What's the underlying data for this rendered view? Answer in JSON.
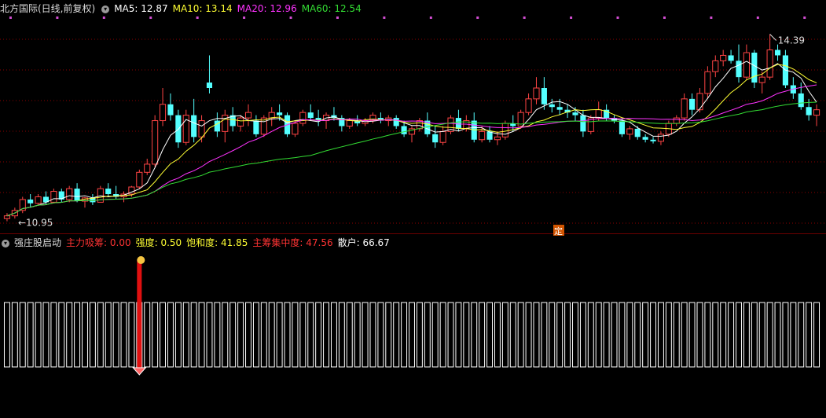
{
  "price_panel": {
    "title": "北方国际(日线,前复权)",
    "ma_labels": [
      {
        "label": "MA5: 12.87",
        "color": "#ffffff"
      },
      {
        "label": "MA10: 13.14",
        "color": "#ffff33"
      },
      {
        "label": "MA20: 12.96",
        "color": "#ff33ff"
      },
      {
        "label": "MA60: 12.54",
        "color": "#33dd33"
      }
    ],
    "high_label": "14.39",
    "low_label": "10.95",
    "marker_label": "定"
  },
  "indicator_panel": {
    "title": "强庄股启动",
    "labels": [
      {
        "label": "主力吸筹: 0.00",
        "color": "#ff3333"
      },
      {
        "label": "强度: 0.50",
        "color": "#ffff33"
      },
      {
        "label": "饱和度: 41.85",
        "color": "#ffff33"
      },
      {
        "label": "主筹集中度: 47.56",
        "color": "#ff3333"
      },
      {
        "label": "散户: 66.67",
        "color": "#ffffff"
      }
    ]
  },
  "colors": {
    "up": "#ff4444",
    "down": "#54ffff",
    "ma5": "#ffffff",
    "ma10": "#ffff33",
    "ma20": "#ff33ff",
    "ma60": "#33dd33",
    "grid": "#8b0000"
  },
  "chart_data": {
    "type": "candlestick",
    "y_range": [
      10.8,
      14.7
    ],
    "candles": [
      {
        "o": 11.0,
        "h": 11.1,
        "l": 10.95,
        "c": 11.05
      },
      {
        "o": 11.05,
        "h": 11.2,
        "l": 11.0,
        "c": 11.15
      },
      {
        "o": 11.15,
        "h": 11.4,
        "l": 11.1,
        "c": 11.35
      },
      {
        "o": 11.35,
        "h": 11.45,
        "l": 11.2,
        "c": 11.28
      },
      {
        "o": 11.28,
        "h": 11.45,
        "l": 11.25,
        "c": 11.4
      },
      {
        "o": 11.4,
        "h": 11.5,
        "l": 11.25,
        "c": 11.3
      },
      {
        "o": 11.3,
        "h": 11.55,
        "l": 11.3,
        "c": 11.5
      },
      {
        "o": 11.5,
        "h": 11.55,
        "l": 11.3,
        "c": 11.35
      },
      {
        "o": 11.35,
        "h": 11.6,
        "l": 11.3,
        "c": 11.55
      },
      {
        "o": 11.55,
        "h": 11.65,
        "l": 11.3,
        "c": 11.32
      },
      {
        "o": 11.32,
        "h": 11.4,
        "l": 11.2,
        "c": 11.38
      },
      {
        "o": 11.38,
        "h": 11.45,
        "l": 11.25,
        "c": 11.3
      },
      {
        "o": 11.3,
        "h": 11.6,
        "l": 11.3,
        "c": 11.55
      },
      {
        "o": 11.55,
        "h": 11.65,
        "l": 11.4,
        "c": 11.45
      },
      {
        "o": 11.45,
        "h": 11.6,
        "l": 11.35,
        "c": 11.4
      },
      {
        "o": 11.4,
        "h": 11.5,
        "l": 11.3,
        "c": 11.45
      },
      {
        "o": 11.45,
        "h": 11.6,
        "l": 11.4,
        "c": 11.58
      },
      {
        "o": 11.58,
        "h": 11.9,
        "l": 11.55,
        "c": 11.85
      },
      {
        "o": 11.85,
        "h": 12.1,
        "l": 11.8,
        "c": 12.0
      },
      {
        "o": 12.0,
        "h": 12.9,
        "l": 11.95,
        "c": 12.8
      },
      {
        "o": 12.8,
        "h": 13.4,
        "l": 12.7,
        "c": 13.1
      },
      {
        "o": 13.1,
        "h": 13.3,
        "l": 12.8,
        "c": 12.9
      },
      {
        "o": 12.9,
        "h": 13.0,
        "l": 12.3,
        "c": 12.4
      },
      {
        "o": 12.4,
        "h": 13.0,
        "l": 12.35,
        "c": 12.9
      },
      {
        "o": 12.9,
        "h": 13.2,
        "l": 12.4,
        "c": 12.5
      },
      {
        "o": 12.5,
        "h": 12.9,
        "l": 12.4,
        "c": 12.8
      },
      {
        "o": 13.5,
        "h": 14.0,
        "l": 13.3,
        "c": 13.4
      },
      {
        "o": 12.8,
        "h": 12.95,
        "l": 12.5,
        "c": 12.6
      },
      {
        "o": 12.6,
        "h": 13.0,
        "l": 12.4,
        "c": 12.9
      },
      {
        "o": 12.9,
        "h": 13.05,
        "l": 12.6,
        "c": 12.7
      },
      {
        "o": 12.7,
        "h": 12.9,
        "l": 12.6,
        "c": 12.85
      },
      {
        "o": 12.85,
        "h": 13.1,
        "l": 12.7,
        "c": 12.95
      },
      {
        "o": 12.8,
        "h": 12.9,
        "l": 12.5,
        "c": 12.55
      },
      {
        "o": 12.55,
        "h": 12.9,
        "l": 12.5,
        "c": 12.85
      },
      {
        "o": 12.85,
        "h": 13.05,
        "l": 12.7,
        "c": 12.95
      },
      {
        "o": 12.95,
        "h": 13.1,
        "l": 12.8,
        "c": 12.9
      },
      {
        "o": 12.9,
        "h": 12.95,
        "l": 12.5,
        "c": 12.55
      },
      {
        "o": 12.55,
        "h": 12.8,
        "l": 12.5,
        "c": 12.75
      },
      {
        "o": 12.75,
        "h": 13.0,
        "l": 12.7,
        "c": 12.95
      },
      {
        "o": 12.95,
        "h": 13.1,
        "l": 12.8,
        "c": 12.85
      },
      {
        "o": 12.85,
        "h": 13.0,
        "l": 12.7,
        "c": 12.8
      },
      {
        "o": 12.8,
        "h": 12.95,
        "l": 12.65,
        "c": 12.9
      },
      {
        "o": 12.9,
        "h": 13.05,
        "l": 12.8,
        "c": 12.85
      },
      {
        "o": 12.85,
        "h": 12.9,
        "l": 12.6,
        "c": 12.7
      },
      {
        "o": 12.7,
        "h": 12.85,
        "l": 12.65,
        "c": 12.8
      },
      {
        "o": 12.8,
        "h": 12.9,
        "l": 12.7,
        "c": 12.75
      },
      {
        "o": 12.75,
        "h": 12.85,
        "l": 12.7,
        "c": 12.8
      },
      {
        "o": 12.8,
        "h": 12.95,
        "l": 12.75,
        "c": 12.9
      },
      {
        "o": 12.85,
        "h": 12.95,
        "l": 12.75,
        "c": 12.8
      },
      {
        "o": 12.8,
        "h": 12.9,
        "l": 12.7,
        "c": 12.85
      },
      {
        "o": 12.85,
        "h": 12.9,
        "l": 12.65,
        "c": 12.7
      },
      {
        "o": 12.7,
        "h": 12.8,
        "l": 12.5,
        "c": 12.55
      },
      {
        "o": 12.55,
        "h": 12.7,
        "l": 12.4,
        "c": 12.65
      },
      {
        "o": 12.65,
        "h": 12.85,
        "l": 12.6,
        "c": 12.8
      },
      {
        "o": 12.8,
        "h": 12.95,
        "l": 12.5,
        "c": 12.55
      },
      {
        "o": 12.55,
        "h": 12.7,
        "l": 12.3,
        "c": 12.4
      },
      {
        "o": 12.4,
        "h": 12.7,
        "l": 12.35,
        "c": 12.6
      },
      {
        "o": 12.6,
        "h": 12.9,
        "l": 12.55,
        "c": 12.85
      },
      {
        "o": 12.85,
        "h": 13.0,
        "l": 12.6,
        "c": 12.65
      },
      {
        "o": 12.65,
        "h": 12.9,
        "l": 12.6,
        "c": 12.8
      },
      {
        "o": 12.8,
        "h": 12.95,
        "l": 12.4,
        "c": 12.45
      },
      {
        "o": 12.45,
        "h": 12.7,
        "l": 12.4,
        "c": 12.6
      },
      {
        "o": 12.6,
        "h": 12.7,
        "l": 12.4,
        "c": 12.45
      },
      {
        "o": 12.45,
        "h": 12.6,
        "l": 12.35,
        "c": 12.5
      },
      {
        "o": 12.5,
        "h": 12.8,
        "l": 12.45,
        "c": 12.75
      },
      {
        "o": 12.75,
        "h": 12.9,
        "l": 12.6,
        "c": 12.7
      },
      {
        "o": 12.7,
        "h": 13.0,
        "l": 12.65,
        "c": 12.95
      },
      {
        "o": 12.95,
        "h": 13.3,
        "l": 12.9,
        "c": 13.2
      },
      {
        "o": 13.2,
        "h": 13.6,
        "l": 13.1,
        "c": 13.4
      },
      {
        "o": 13.4,
        "h": 13.6,
        "l": 13.0,
        "c": 13.1
      },
      {
        "o": 13.1,
        "h": 13.2,
        "l": 12.95,
        "c": 13.05
      },
      {
        "o": 13.05,
        "h": 13.2,
        "l": 12.9,
        "c": 13.0
      },
      {
        "o": 13.0,
        "h": 13.1,
        "l": 12.85,
        "c": 12.95
      },
      {
        "o": 12.95,
        "h": 13.05,
        "l": 12.8,
        "c": 12.9
      },
      {
        "o": 12.9,
        "h": 13.0,
        "l": 12.5,
        "c": 12.6
      },
      {
        "o": 12.6,
        "h": 12.9,
        "l": 12.55,
        "c": 12.85
      },
      {
        "o": 12.85,
        "h": 13.15,
        "l": 12.8,
        "c": 13.0
      },
      {
        "o": 13.0,
        "h": 13.1,
        "l": 12.8,
        "c": 12.85
      },
      {
        "o": 12.85,
        "h": 12.9,
        "l": 12.75,
        "c": 12.8
      },
      {
        "o": 12.8,
        "h": 12.85,
        "l": 12.5,
        "c": 12.55
      },
      {
        "o": 12.55,
        "h": 12.7,
        "l": 12.45,
        "c": 12.65
      },
      {
        "o": 12.65,
        "h": 12.7,
        "l": 12.45,
        "c": 12.5
      },
      {
        "o": 12.5,
        "h": 12.55,
        "l": 12.4,
        "c": 12.45
      },
      {
        "o": 12.45,
        "h": 12.5,
        "l": 12.38,
        "c": 12.42
      },
      {
        "o": 12.42,
        "h": 12.6,
        "l": 12.35,
        "c": 12.55
      },
      {
        "o": 12.55,
        "h": 12.8,
        "l": 12.5,
        "c": 12.75
      },
      {
        "o": 12.75,
        "h": 12.9,
        "l": 12.7,
        "c": 12.85
      },
      {
        "o": 12.85,
        "h": 13.3,
        "l": 12.8,
        "c": 13.2
      },
      {
        "o": 13.2,
        "h": 13.3,
        "l": 12.9,
        "c": 13.0
      },
      {
        "o": 13.0,
        "h": 13.4,
        "l": 12.95,
        "c": 13.3
      },
      {
        "o": 13.3,
        "h": 13.8,
        "l": 13.2,
        "c": 13.7
      },
      {
        "o": 13.7,
        "h": 14.0,
        "l": 13.6,
        "c": 13.9
      },
      {
        "o": 13.9,
        "h": 14.1,
        "l": 13.8,
        "c": 14.0
      },
      {
        "o": 14.0,
        "h": 14.1,
        "l": 13.85,
        "c": 13.9
      },
      {
        "o": 13.9,
        "h": 14.2,
        "l": 13.5,
        "c": 13.6
      },
      {
        "o": 13.6,
        "h": 14.2,
        "l": 13.55,
        "c": 14.05
      },
      {
        "o": 14.05,
        "h": 14.1,
        "l": 13.4,
        "c": 13.5
      },
      {
        "o": 13.5,
        "h": 13.7,
        "l": 13.3,
        "c": 13.6
      },
      {
        "o": 13.6,
        "h": 14.39,
        "l": 13.55,
        "c": 14.1
      },
      {
        "o": 14.1,
        "h": 14.2,
        "l": 13.9,
        "c": 14.0
      },
      {
        "o": 14.0,
        "h": 14.1,
        "l": 13.4,
        "c": 13.45
      },
      {
        "o": 13.45,
        "h": 13.6,
        "l": 13.2,
        "c": 13.3
      },
      {
        "o": 13.3,
        "h": 13.5,
        "l": 13.0,
        "c": 13.05
      },
      {
        "o": 13.05,
        "h": 13.2,
        "l": 12.8,
        "c": 12.9
      },
      {
        "o": 12.9,
        "h": 13.1,
        "l": 12.7,
        "c": 13.0
      }
    ],
    "ma_values": {
      "MA5": 12.87,
      "MA10": 13.14,
      "MA20": 12.96,
      "MA60": 12.54
    },
    "indicator": {
      "signal_index": 17,
      "values": {
        "主力吸筹": 0.0,
        "强度": 0.5,
        "饱和度": 41.85,
        "主筹集中度": 47.56,
        "散户": 66.67
      }
    }
  }
}
